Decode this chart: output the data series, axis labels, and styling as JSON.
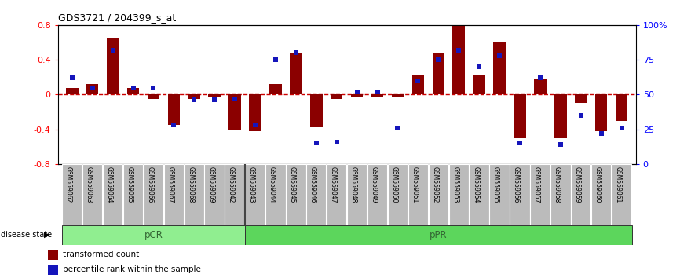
{
  "title": "GDS3721 / 204399_s_at",
  "samples": [
    "GSM559062",
    "GSM559063",
    "GSM559064",
    "GSM559065",
    "GSM559066",
    "GSM559067",
    "GSM559068",
    "GSM559069",
    "GSM559042",
    "GSM559043",
    "GSM559044",
    "GSM559045",
    "GSM559046",
    "GSM559047",
    "GSM559048",
    "GSM559049",
    "GSM559050",
    "GSM559051",
    "GSM559052",
    "GSM559053",
    "GSM559054",
    "GSM559055",
    "GSM559056",
    "GSM559057",
    "GSM559058",
    "GSM559059",
    "GSM559060",
    "GSM559061"
  ],
  "transformed_count": [
    0.08,
    0.12,
    0.65,
    0.08,
    -0.05,
    -0.35,
    -0.05,
    -0.03,
    -0.4,
    -0.42,
    0.12,
    0.48,
    -0.38,
    -0.05,
    -0.02,
    -0.02,
    -0.02,
    0.22,
    0.47,
    0.8,
    0.22,
    0.6,
    -0.5,
    0.18,
    -0.5,
    -0.1,
    -0.42,
    -0.3
  ],
  "percentile_rank": [
    62,
    55,
    82,
    55,
    55,
    28,
    46,
    46,
    47,
    28,
    75,
    80,
    15,
    16,
    52,
    52,
    26,
    60,
    75,
    82,
    70,
    78,
    15,
    62,
    14,
    35,
    22,
    26
  ],
  "pCR_count": 9,
  "pPR_count": 19,
  "bar_color": "#8B0000",
  "dot_color": "#1515BB",
  "zero_line_color": "#CC0000",
  "ylim": [
    -0.8,
    0.8
  ],
  "yticks_left": [
    -0.8,
    -0.4,
    0.0,
    0.4,
    0.8
  ],
  "ytick_labels_left": [
    "-0.8",
    "-0.4",
    "0",
    "0.4",
    "0.8"
  ],
  "dotted_lines": [
    -0.4,
    0.4
  ],
  "right_axis_ticks": [
    0,
    25,
    50,
    75,
    100
  ],
  "right_axis_labels": [
    "0",
    "25",
    "50",
    "75",
    "100%"
  ],
  "pCR_color": "#90EE90",
  "pPR_color": "#5CD65C",
  "label_bg_color": "#BBBBBB",
  "bar_width": 0.6
}
